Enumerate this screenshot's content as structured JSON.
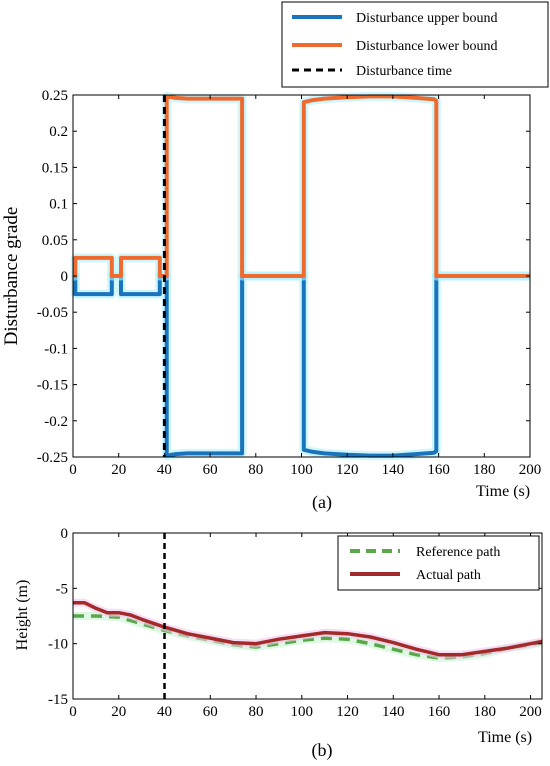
{
  "chart_data": [
    {
      "type": "line",
      "panel_label": "(a)",
      "xlabel": "Time (s)",
      "ylabel": "Disturbance grade",
      "xlim": [
        0,
        200
      ],
      "ylim": [
        -0.25,
        0.25
      ],
      "xticks": [
        0,
        20,
        40,
        60,
        80,
        100,
        120,
        140,
        160,
        180,
        200
      ],
      "yticks": [
        -0.25,
        -0.2,
        -0.15,
        -0.1,
        -0.05,
        0,
        0.05,
        0.1,
        0.15,
        0.2,
        0.25
      ],
      "ytick_labels": [
        "-0.25",
        "-0.2",
        "-0.15",
        "-0.1",
        "-0.05",
        "0",
        "0.05",
        "0.1",
        "0.15",
        "0.2",
        "0.25"
      ],
      "grid": false,
      "legend_position": "top-right-outside",
      "series": [
        {
          "name": "Disturbance upper bound",
          "color": "#1a74bd",
          "style": "solid",
          "x": [
            0,
            1,
            1,
            17,
            17,
            21,
            21,
            38,
            38,
            40,
            40,
            41,
            41,
            45,
            50,
            60,
            70,
            73,
            74,
            74,
            80,
            100,
            101,
            101,
            105,
            110,
            120,
            130,
            140,
            150,
            158,
            159,
            159,
            160,
            160,
            180,
            200
          ],
          "y": [
            0,
            0,
            -0.025,
            -0.025,
            0,
            0,
            -0.025,
            -0.025,
            0,
            0,
            0,
            0,
            -0.248,
            -0.246,
            -0.245,
            -0.245,
            -0.245,
            -0.245,
            -0.245,
            0,
            0,
            0,
            0,
            -0.24,
            -0.243,
            -0.245,
            -0.247,
            -0.248,
            -0.248,
            -0.246,
            -0.244,
            -0.242,
            0,
            0,
            0,
            0,
            0
          ]
        },
        {
          "name": "Disturbance lower bound",
          "color": "#ee6a2e",
          "style": "solid",
          "x": [
            0,
            1,
            1,
            17,
            17,
            21,
            21,
            38,
            38,
            40,
            40,
            41,
            41,
            45,
            50,
            60,
            70,
            73,
            74,
            74,
            80,
            100,
            101,
            101,
            105,
            110,
            120,
            130,
            140,
            150,
            158,
            159,
            159,
            160,
            160,
            180,
            200
          ],
          "y": [
            0,
            0,
            0.025,
            0.025,
            0,
            0,
            0.025,
            0.025,
            0,
            0,
            0,
            0,
            0.248,
            0.246,
            0.245,
            0.245,
            0.245,
            0.245,
            0.245,
            0,
            0,
            0,
            0,
            0.24,
            0.243,
            0.245,
            0.247,
            0.248,
            0.248,
            0.246,
            0.244,
            0.242,
            0,
            0,
            0,
            0,
            0
          ]
        },
        {
          "name": "Disturbance time",
          "color": "#000000",
          "style": "dashed",
          "vline_x": 40
        }
      ]
    },
    {
      "type": "line",
      "panel_label": "(b)",
      "xlabel": "Time (s)",
      "ylabel": "Height (m)",
      "xlim": [
        0,
        205
      ],
      "ylim": [
        -15,
        0
      ],
      "xticks": [
        0,
        20,
        40,
        60,
        80,
        100,
        120,
        140,
        160,
        180,
        200
      ],
      "yticks": [
        -15,
        -10,
        -5,
        0
      ],
      "ytick_labels": [
        "-15",
        "-10",
        "-5",
        "0"
      ],
      "grid": false,
      "legend_position": "top-right",
      "vline_x": 40,
      "series": [
        {
          "name": "Reference path",
          "color": "#5aa64a",
          "style": "dashed",
          "x": [
            0,
            10,
            20,
            30,
            40,
            50,
            60,
            70,
            80,
            90,
            100,
            110,
            120,
            130,
            140,
            150,
            160,
            170,
            180,
            190,
            200,
            205
          ],
          "y": [
            -7.5,
            -7.5,
            -7.6,
            -8.2,
            -8.8,
            -9.3,
            -9.7,
            -10.1,
            -10.3,
            -10.0,
            -9.7,
            -9.5,
            -9.6,
            -10.0,
            -10.5,
            -11.0,
            -11.3,
            -11.2,
            -10.9,
            -10.4,
            -10.1,
            -9.9
          ]
        },
        {
          "name": "Actual path",
          "color": "#a32a2a",
          "style": "solid",
          "x": [
            0,
            5,
            10,
            15,
            20,
            25,
            30,
            40,
            50,
            60,
            70,
            80,
            90,
            100,
            110,
            120,
            130,
            140,
            150,
            160,
            170,
            180,
            190,
            200,
            205
          ],
          "y": [
            -6.3,
            -6.3,
            -6.8,
            -7.2,
            -7.2,
            -7.4,
            -7.8,
            -8.5,
            -9.1,
            -9.5,
            -9.9,
            -10.0,
            -9.6,
            -9.3,
            -9.0,
            -9.1,
            -9.4,
            -9.9,
            -10.5,
            -11.0,
            -11.0,
            -10.7,
            -10.4,
            -10.0,
            -9.8
          ]
        }
      ]
    }
  ]
}
